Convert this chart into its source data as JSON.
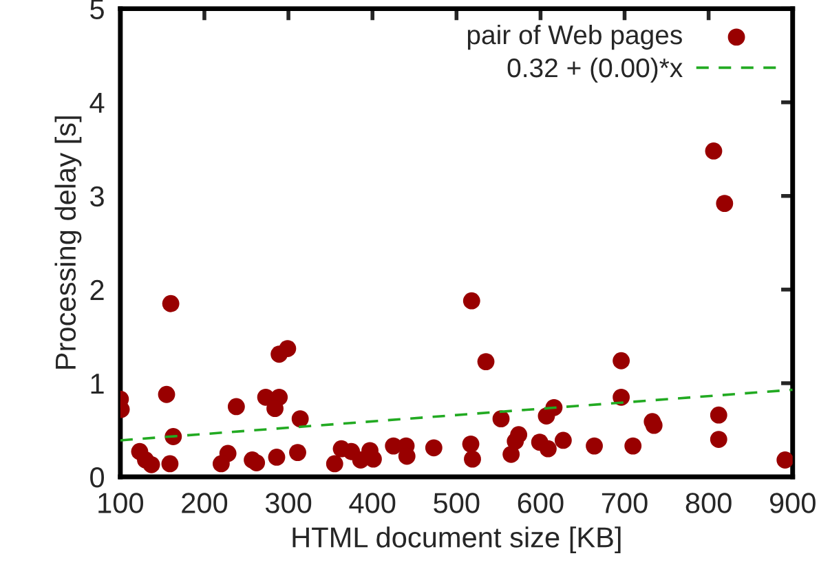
{
  "chart_data": {
    "type": "scatter",
    "xlabel": "HTML document size [KB]",
    "ylabel": "Processing delay [s]",
    "xlim": [
      100,
      900
    ],
    "ylim": [
      0,
      5
    ],
    "xticks": [
      100,
      200,
      300,
      400,
      500,
      600,
      700,
      800,
      900
    ],
    "yticks": [
      0,
      1,
      2,
      3,
      4,
      5
    ],
    "grid": false,
    "legend": "top right",
    "series": [
      {
        "name": "pair of Web pages",
        "color": "#990000",
        "marker": "circle",
        "x": [
          160,
          100,
          101,
          155,
          163,
          123,
          130,
          137,
          159,
          238,
          289,
          299,
          273,
          289,
          284,
          314,
          228,
          220,
          257,
          262,
          286,
          311,
          355,
          363,
          375,
          386,
          397,
          401,
          425,
          440,
          441,
          473,
          518,
          535,
          553,
          517,
          519,
          565,
          570,
          574,
          599,
          609,
          607,
          616,
          627,
          664,
          696,
          696,
          710,
          733,
          735,
          812,
          812,
          891,
          806,
          819
        ],
        "values": [
          1.85,
          0.83,
          0.72,
          0.88,
          0.43,
          0.27,
          0.18,
          0.13,
          0.14,
          0.75,
          1.31,
          1.37,
          0.85,
          0.85,
          0.73,
          0.62,
          0.25,
          0.14,
          0.18,
          0.15,
          0.21,
          0.26,
          0.14,
          0.3,
          0.27,
          0.18,
          0.28,
          0.19,
          0.33,
          0.33,
          0.22,
          0.31,
          1.88,
          1.23,
          0.62,
          0.35,
          0.19,
          0.24,
          0.38,
          0.45,
          0.37,
          0.3,
          0.65,
          0.74,
          0.39,
          0.33,
          1.24,
          0.85,
          0.33,
          0.59,
          0.55,
          0.66,
          0.4,
          0.18,
          3.48,
          2.92
        ]
      },
      {
        "name": "0.32 + (0.00)*x",
        "type": "line",
        "color": "#22aa22",
        "line_style": "dashed",
        "marker": "none",
        "x": [
          100,
          900
        ],
        "values": [
          0.39,
          0.93
        ]
      }
    ]
  }
}
